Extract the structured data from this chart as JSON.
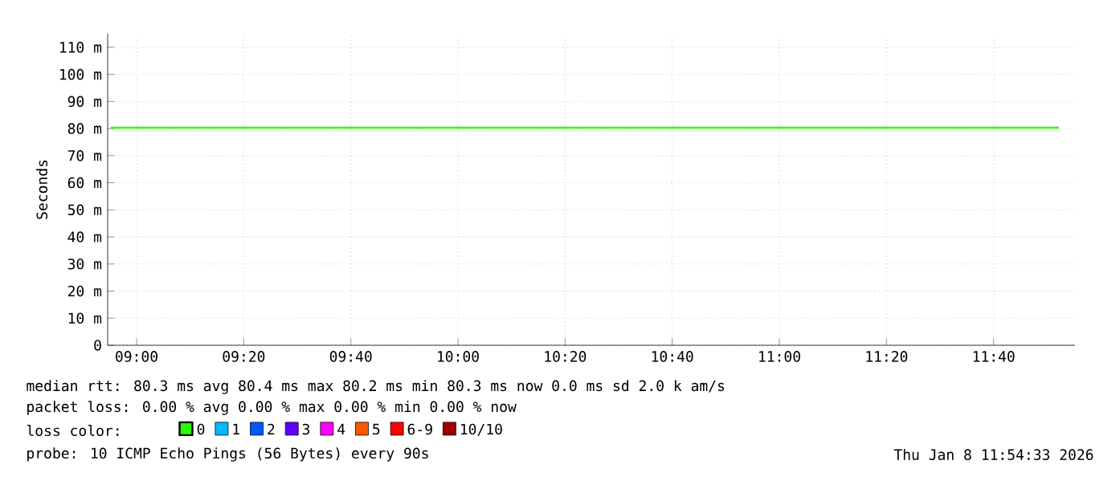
{
  "chart_data": {
    "type": "line",
    "ylabel": "Seconds",
    "x": [
      8.92,
      11.87
    ],
    "series": [
      {
        "name": "0",
        "color": "#26ff00",
        "values": [
          80.3,
          80.3
        ]
      },
      {
        "name": "1",
        "color": "#00b8ff",
        "values": [
          null,
          null
        ]
      },
      {
        "name": "2",
        "color": "#0059ff",
        "values": [
          null,
          null
        ]
      },
      {
        "name": "3",
        "color": "#5e00ff",
        "values": [
          null,
          null
        ]
      },
      {
        "name": "4",
        "color": "#ff00fe",
        "values": [
          null,
          null
        ]
      },
      {
        "name": "5",
        "color": "#ff5500",
        "values": [
          null,
          null
        ]
      },
      {
        "name": "6-9",
        "color": "#ff0000",
        "values": [
          null,
          null
        ]
      },
      {
        "name": "10/10",
        "color": "#a10000",
        "values": [
          null,
          null
        ]
      }
    ],
    "legend": "bottom",
    "legend_title": "loss color:",
    "xlim": [
      8.91,
      11.92
    ],
    "ylim": [
      0,
      115
    ],
    "xticks": [
      {
        "value": 9,
        "label": "09:00"
      },
      {
        "value": 9.333333,
        "label": "09:20"
      },
      {
        "value": 9.666667,
        "label": "09:40"
      },
      {
        "value": 10,
        "label": "10:00"
      },
      {
        "value": 10.333333,
        "label": "10:20"
      },
      {
        "value": 10.666667,
        "label": "10:40"
      },
      {
        "value": 11,
        "label": "11:00"
      },
      {
        "value": 11.333333,
        "label": "11:20"
      },
      {
        "value": 11.666667,
        "label": "11:40"
      }
    ],
    "yticks": [
      0,
      {
        "value": 10,
        "label": "10 m"
      },
      {
        "value": 20,
        "label": "20 m"
      },
      {
        "value": 30,
        "label": "30 m"
      },
      {
        "value": 40,
        "label": "40 m"
      },
      {
        "value": 50,
        "label": "50 m"
      },
      {
        "value": 60,
        "label": "60 m"
      },
      {
        "value": 70,
        "label": "70 m"
      },
      {
        "value": 80,
        "label": "80 m"
      },
      {
        "value": 90,
        "label": "90 m"
      },
      {
        "value": 100,
        "label": "100 m"
      },
      {
        "value": 110,
        "label": "110 m"
      }
    ],
    "grid": true,
    "marker": "none",
    "line_style": "solid",
    "annotations": [
      "median rtt:  80.3 ms avg  80.4 ms max  80.2 ms min  80.3 ms now  0.0 ms sd  2.0 k am/s",
      "packet loss: 0.00 % avg  0.00 % max  0.00 % min  0.00 % now",
      "probe:       10 ICMP Echo Pings (56 Bytes) every 90s",
      "Thu Jan  8 11:54:33 2026"
    ]
  }
}
